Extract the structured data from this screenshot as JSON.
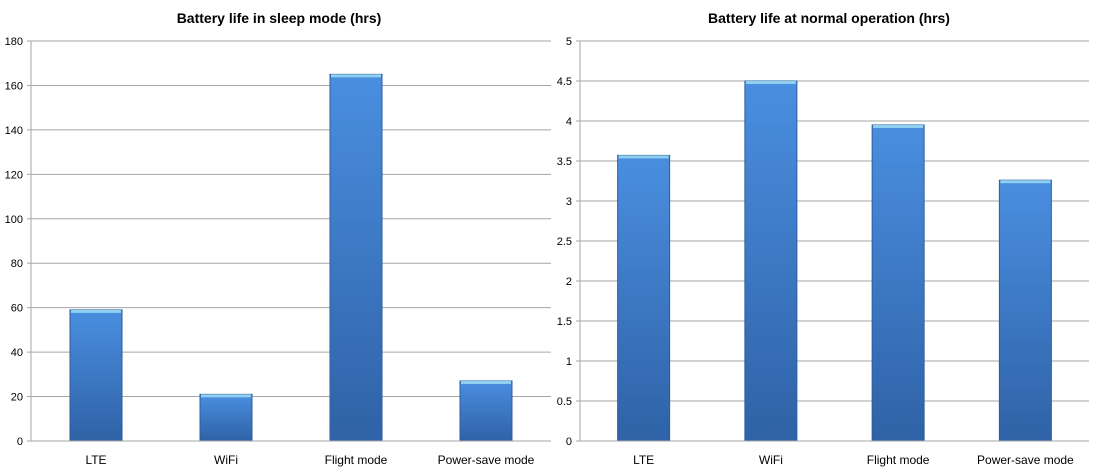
{
  "chart_data": [
    {
      "type": "bar",
      "title": "Battery life in sleep mode (hrs)",
      "categories": [
        "LTE",
        "WiFi",
        "Flight mode",
        "Power-save mode"
      ],
      "values": [
        59,
        21,
        165,
        27
      ],
      "ylim": [
        0,
        180
      ],
      "yticks": [
        0,
        20,
        40,
        60,
        80,
        100,
        120,
        140,
        160,
        180
      ],
      "ytick_labels": [
        "0",
        "20",
        "40",
        "60",
        "80",
        "100",
        "120",
        "140",
        "160",
        "180"
      ],
      "grid": true,
      "legend": "none",
      "bar_color": "#3f7fd0",
      "bar_top_color": "#8fd0f0"
    },
    {
      "type": "bar",
      "title": "Battery life at normal operation (hrs)",
      "categories": [
        "LTE",
        "WiFi",
        "Flight mode",
        "Power-save mode"
      ],
      "values": [
        3.57,
        4.5,
        3.95,
        3.26
      ],
      "ylim": [
        0,
        5
      ],
      "yticks": [
        0,
        0.5,
        1,
        1.5,
        2,
        2.5,
        3,
        3.5,
        4,
        4.5,
        5
      ],
      "ytick_labels": [
        "0",
        "0.5",
        "1",
        "1.5",
        "2",
        "2.5",
        "3",
        "3.5",
        "4",
        "4.5",
        "5"
      ],
      "grid": true,
      "legend": "none",
      "bar_color": "#3f7fd0",
      "bar_top_color": "#8fd0f0"
    }
  ]
}
